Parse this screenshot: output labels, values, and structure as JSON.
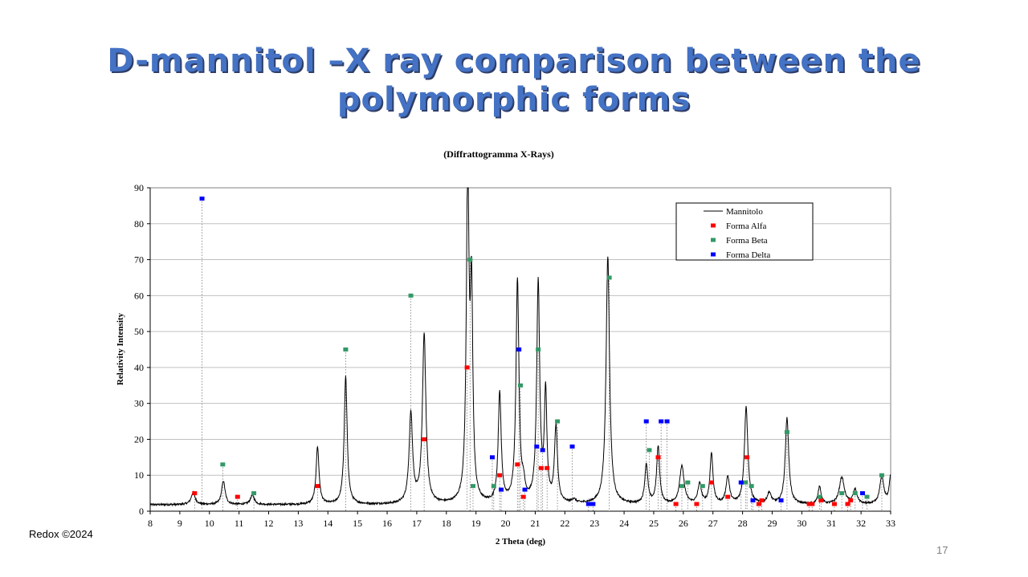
{
  "slide": {
    "title_line1": "D-mannitol –X ray comparison between the",
    "title_line2": "polymorphic forms",
    "footer": "Redox ©2024",
    "page_number": "17"
  },
  "chart_data": {
    "type": "line",
    "title": "(Diffrattogramma X-Rays)",
    "xlabel": "2 Theta (deg)",
    "ylabel": "Relativity Intensity",
    "xlim": [
      8,
      33
    ],
    "ylim": [
      0,
      90
    ],
    "xticks": [
      8,
      9,
      10,
      11,
      12,
      13,
      14,
      15,
      16,
      17,
      18,
      19,
      20,
      21,
      22,
      23,
      24,
      25,
      26,
      27,
      28,
      29,
      30,
      31,
      32,
      33
    ],
    "yticks": [
      0,
      10,
      20,
      30,
      40,
      50,
      60,
      70,
      80,
      90
    ],
    "grid": "horizontal",
    "legend_position": "top-right",
    "colors": {
      "line": "#000000",
      "alfa": "#ff0000",
      "beta": "#339966",
      "delta": "#0000ff",
      "plot_bg": "#ffffff",
      "grid": "#c0c0c0"
    },
    "series": [
      {
        "name": "Mannitolo",
        "kind": "line",
        "baseline": 1.8,
        "peaks": [
          [
            9.45,
            3.4,
            0.08
          ],
          [
            10.47,
            6.6,
            0.07
          ],
          [
            11.45,
            2.6,
            0.08
          ],
          [
            13.65,
            16,
            0.06
          ],
          [
            14.6,
            35.5,
            0.06
          ],
          [
            16.8,
            25,
            0.07
          ],
          [
            17.25,
            47,
            0.07
          ],
          [
            18.72,
            90,
            0.055
          ],
          [
            18.85,
            55,
            0.05
          ],
          [
            19.8,
            30.5,
            0.06
          ],
          [
            20.4,
            62,
            0.06
          ],
          [
            20.6,
            4,
            0.06
          ],
          [
            21.1,
            61,
            0.06
          ],
          [
            21.35,
            30,
            0.05
          ],
          [
            21.7,
            21,
            0.06
          ],
          [
            22.3,
            1,
            0.08
          ],
          [
            23.45,
            69,
            0.07
          ],
          [
            24.75,
            11,
            0.06
          ],
          [
            25.15,
            16,
            0.06
          ],
          [
            25.95,
            10.5,
            0.09
          ],
          [
            26.55,
            5.5,
            0.07
          ],
          [
            26.95,
            14,
            0.06
          ],
          [
            27.5,
            7.5,
            0.07
          ],
          [
            28.12,
            27,
            0.07
          ],
          [
            28.9,
            3,
            0.08
          ],
          [
            29.5,
            24,
            0.07
          ],
          [
            30.6,
            5,
            0.06
          ],
          [
            31.35,
            7.5,
            0.1
          ],
          [
            31.8,
            4,
            0.08
          ],
          [
            32.7,
            7.8,
            0.08
          ],
          [
            33.0,
            8,
            0.06
          ]
        ]
      },
      {
        "name": "Forma Alfa",
        "kind": "points",
        "points": [
          [
            9.5,
            5
          ],
          [
            10.95,
            4
          ],
          [
            13.65,
            7
          ],
          [
            17.25,
            20
          ],
          [
            18.7,
            40
          ],
          [
            19.8,
            10
          ],
          [
            20.4,
            13
          ],
          [
            20.6,
            4
          ],
          [
            21.2,
            12
          ],
          [
            21.4,
            12
          ],
          [
            25.15,
            15
          ],
          [
            25.75,
            2
          ],
          [
            26.45,
            2
          ],
          [
            26.95,
            8
          ],
          [
            27.5,
            4
          ],
          [
            28.15,
            15
          ],
          [
            28.55,
            2
          ],
          [
            28.65,
            3
          ],
          [
            30.25,
            2
          ],
          [
            30.35,
            2
          ],
          [
            30.65,
            3
          ],
          [
            31.1,
            2
          ],
          [
            31.55,
            2
          ],
          [
            31.65,
            3
          ]
        ]
      },
      {
        "name": "Forma Beta",
        "kind": "points",
        "points": [
          [
            10.45,
            13
          ],
          [
            11.5,
            5
          ],
          [
            14.6,
            45
          ],
          [
            16.8,
            60
          ],
          [
            18.8,
            70
          ],
          [
            18.9,
            7
          ],
          [
            19.6,
            7
          ],
          [
            20.5,
            35
          ],
          [
            21.1,
            45
          ],
          [
            21.75,
            25
          ],
          [
            23.5,
            65
          ],
          [
            24.85,
            17
          ],
          [
            25.95,
            7
          ],
          [
            26.15,
            8
          ],
          [
            26.65,
            7
          ],
          [
            28.1,
            8
          ],
          [
            28.3,
            7
          ],
          [
            29.5,
            22
          ],
          [
            30.6,
            4
          ],
          [
            31.35,
            5
          ],
          [
            31.8,
            5
          ],
          [
            32.2,
            4
          ],
          [
            32.7,
            10
          ]
        ]
      },
      {
        "name": "Forma Delta",
        "kind": "points",
        "points": [
          [
            9.75,
            87
          ],
          [
            19.55,
            15
          ],
          [
            19.85,
            6
          ],
          [
            20.45,
            45
          ],
          [
            20.65,
            6
          ],
          [
            21.05,
            18
          ],
          [
            21.25,
            17
          ],
          [
            22.25,
            18
          ],
          [
            22.8,
            2
          ],
          [
            22.95,
            2
          ],
          [
            24.75,
            25
          ],
          [
            25.25,
            25
          ],
          [
            25.45,
            25
          ],
          [
            27.95,
            8
          ],
          [
            28.35,
            3
          ],
          [
            29.3,
            3
          ],
          [
            32.05,
            5
          ]
        ]
      }
    ]
  }
}
